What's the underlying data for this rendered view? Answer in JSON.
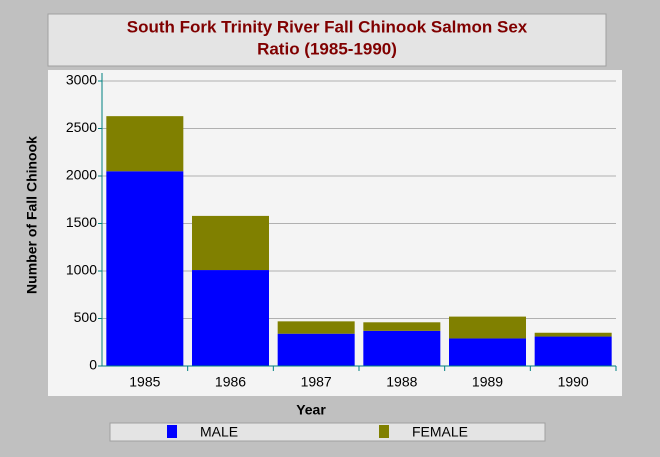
{
  "chart_data": {
    "type": "stacked_bar",
    "title": [
      "South Fork Trinity River Fall Chinook Salmon Sex",
      "Ratio (1985-1990)"
    ],
    "x_label": "Year",
    "y_label": "Number of Fall Chinook",
    "categories": [
      "1985",
      "1986",
      "1987",
      "1988",
      "1989",
      "1990"
    ],
    "series": [
      {
        "name": "MALE",
        "color": "#0000ff",
        "values": [
          2050,
          1010,
          340,
          370,
          290,
          310
        ]
      },
      {
        "name": "FEMALE",
        "color": "#808000",
        "values": [
          580,
          570,
          130,
          90,
          230,
          40
        ]
      }
    ],
    "ylim": [
      0,
      3000
    ],
    "yticks": [
      0,
      500,
      1000,
      1500,
      2000,
      2500,
      3000
    ],
    "grid": true
  }
}
